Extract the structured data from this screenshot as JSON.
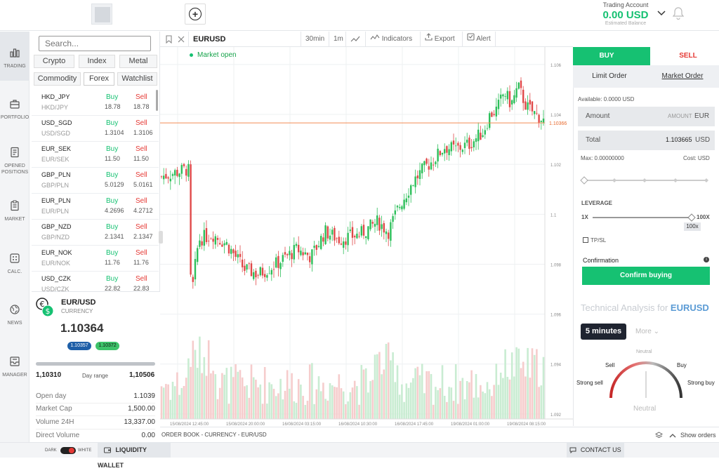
{
  "header": {
    "account_title": "Trading Account",
    "account_value": "0.00 USD",
    "account_sub": "Estimated Balance"
  },
  "nav": [
    {
      "label": "TRADING",
      "icon": "bar-chart-icon"
    },
    {
      "label": "PORTFOLIO",
      "icon": "briefcase-icon"
    },
    {
      "label": "OPENED POSITIONS",
      "icon": "document-icon"
    },
    {
      "label": "MARKET",
      "icon": "clipboard-icon"
    },
    {
      "label": "CALC.",
      "icon": "calculator-icon"
    },
    {
      "label": "NEWS",
      "icon": "globe-icon"
    },
    {
      "label": "MANAGER",
      "icon": "inbox-icon"
    }
  ],
  "market": {
    "search_placeholder": "Search...",
    "categories": [
      "Crypto",
      "Index",
      "Metal",
      "Commodity",
      "Forex",
      "Watchlist"
    ],
    "active_category": "Forex",
    "rows": [
      {
        "sym": "HKD_JPY",
        "sub": "HKD/JPY",
        "buy": "Buy",
        "bp": "18.78",
        "sell": "Sell",
        "sp": "18.78"
      },
      {
        "sym": "USD_SGD",
        "sub": "USD/SGD",
        "buy": "Buy",
        "bp": "1.3104",
        "sell": "Sell",
        "sp": "1.3106"
      },
      {
        "sym": "EUR_SEK",
        "sub": "EUR/SEK",
        "buy": "Buy",
        "bp": "11.50",
        "sell": "Sell",
        "sp": "11.50"
      },
      {
        "sym": "GBP_PLN",
        "sub": "GBP/PLN",
        "buy": "Buy",
        "bp": "5.0129",
        "sell": "Sell",
        "sp": "5.0161"
      },
      {
        "sym": "EUR_PLN",
        "sub": "EUR/PLN",
        "buy": "Buy",
        "bp": "4.2696",
        "sell": "Sell",
        "sp": "4.2712"
      },
      {
        "sym": "GBP_NZD",
        "sub": "GBP/NZD",
        "buy": "Buy",
        "bp": "2.1341",
        "sell": "Sell",
        "sp": "2.1347"
      },
      {
        "sym": "EUR_NOK",
        "sub": "EUR/NOK",
        "buy": "Buy",
        "bp": "11.76",
        "sell": "Sell",
        "sp": "11.76"
      },
      {
        "sym": "USD_CZK",
        "sub": "USD/CZK",
        "buy": "Buy",
        "bp": "22.82",
        "sell": "Sell",
        "sp": "22.83"
      }
    ]
  },
  "detail": {
    "symbol": "EUR/USD",
    "type": "CURRENCY",
    "price": "1.10364",
    "bid": "1.10357",
    "ask": "1.10372",
    "range_low": "1,10310",
    "range_label": "Day range",
    "range_high": "1,10506",
    "stats": [
      {
        "label": "Open day",
        "value": "1.1039"
      },
      {
        "label": "Market Cap",
        "value": "1,500.00"
      },
      {
        "label": "Volume 24H",
        "value": "13,337.00"
      },
      {
        "label": "Direct Volume",
        "value": "0.00"
      }
    ]
  },
  "chart_toolbar": {
    "symbol": "EURUSD",
    "interval": "30min",
    "range": "1m",
    "indicators": "Indicators",
    "export": "Export",
    "alert": "Alert",
    "status": "Market open"
  },
  "chart_data": {
    "type": "candlestick",
    "y_ticks": [
      "1.106",
      "1.104",
      "1.102",
      "1.1",
      "1.098",
      "1.096",
      "1.094",
      "1.092"
    ],
    "ylim": [
      1.0918,
      1.1067
    ],
    "x_ticks": [
      "15/08/2024 12:45:00",
      "15/08/2024 20:00:00",
      "16/08/2024 03:15:00",
      "16/08/2024 10:30:00",
      "16/08/2024 17:45:00",
      "19/08/2024 01:00:00",
      "19/08/2024 08:15:00"
    ],
    "last_price": "1.10366",
    "close_path": [
      [
        0,
        1.1015
      ],
      [
        38,
        1.1018
      ],
      [
        42,
        1.1017
      ],
      [
        44,
        1.0963
      ],
      [
        48,
        1.0975
      ],
      [
        55,
        1.099
      ],
      [
        75,
        1.0992
      ],
      [
        95,
        1.0988
      ],
      [
        120,
        1.0978
      ],
      [
        140,
        1.0976
      ],
      [
        165,
        1.098
      ],
      [
        195,
        1.0986
      ],
      [
        215,
        1.0983
      ],
      [
        235,
        1.0993
      ],
      [
        255,
        1.099
      ],
      [
        285,
        1.0992
      ],
      [
        310,
        1.0997
      ],
      [
        325,
        1.0993
      ],
      [
        340,
        1.1003
      ],
      [
        360,
        1.1013
      ],
      [
        375,
        1.1018
      ],
      [
        390,
        1.1022
      ],
      [
        405,
        1.1027
      ],
      [
        420,
        1.1026
      ],
      [
        440,
        1.1028
      ],
      [
        460,
        1.1033
      ],
      [
        470,
        1.104
      ],
      [
        480,
        1.1042
      ],
      [
        490,
        1.1049
      ],
      [
        500,
        1.1044
      ],
      [
        510,
        1.1051
      ],
      [
        522,
        1.1043
      ],
      [
        535,
        1.104
      ],
      [
        545,
        1.1038
      ],
      [
        548,
        1.1036
      ]
    ]
  },
  "order_bar": {
    "title": "ORDER BOOK - CURRENCY - EUR/USD",
    "show_orders": "Show orders"
  },
  "trade": {
    "buy": "BUY",
    "sell": "SELL",
    "limit": "Limit Order",
    "market": "Market Order",
    "available": "Available: 0.0000 USD",
    "amount_label": "Amount",
    "amount_placeholder": "AMOUNT",
    "amount_ccy": "EUR",
    "total_label": "Total",
    "total_value": "1.103665",
    "total_ccy": "USD",
    "max": "Max: 0.00000000",
    "cost": "Cost: USD",
    "leverage_label": "LEVERAGE",
    "lev_min": "1X",
    "lev_max": "100X",
    "lev_value": "100x",
    "tpsl": "TP/SL",
    "confirmation": "Confirmation",
    "confirm_btn": "Confirm buying",
    "ta_title": "Technical Analysis for",
    "ta_symbol": "EURUSD",
    "ta_interval": "5 minutes",
    "ta_more": "More",
    "gauge_neutral_top": "Neutral",
    "gauge_sell": "Sell",
    "gauge_buy": "Buy",
    "gauge_strong_sell": "Strong sell",
    "gauge_strong_buy": "Strong buy",
    "gauge_result": "Neutral"
  },
  "footer": {
    "dark": "DARK",
    "white": "WHITE",
    "wallet": "LIQUIDITY WALLET",
    "contact": "CONTACT US"
  }
}
